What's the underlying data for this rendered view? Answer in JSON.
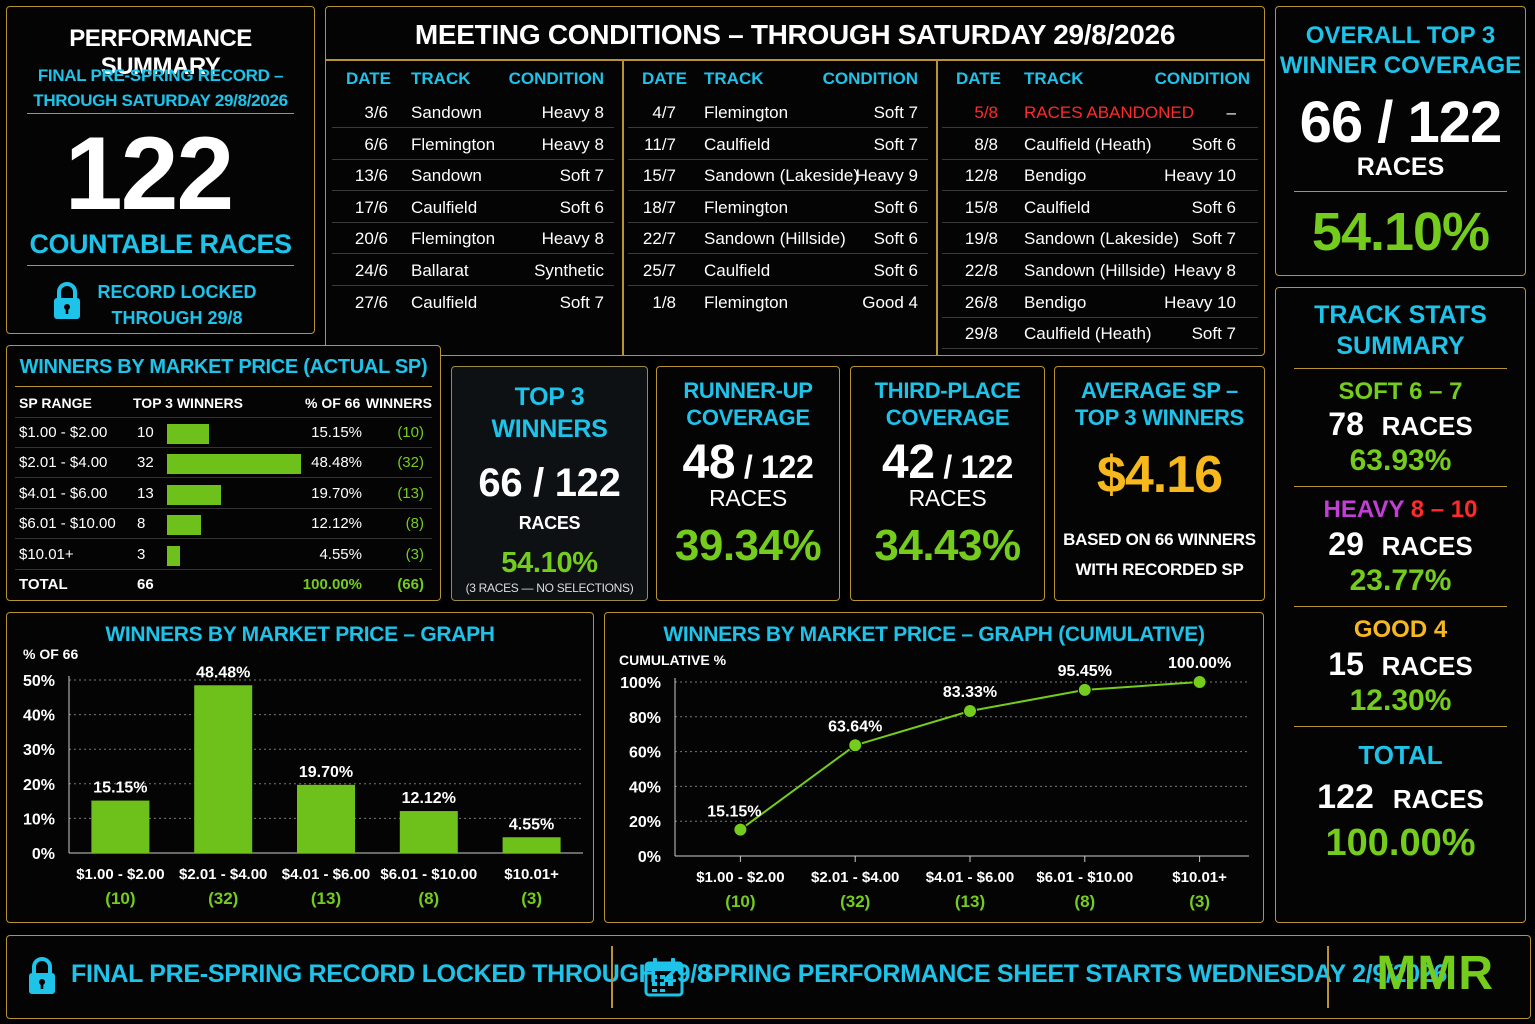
{
  "performance_summary": {
    "title": "PERFORMANCE SUMMARY",
    "subtitle_line1": "FINAL PRE-SPRING RECORD –",
    "subtitle_line2": "THROUGH SATURDAY 29/8/2026",
    "big_number": "122",
    "big_label": "COUNTABLE RACES",
    "lock_line1": "RECORD LOCKED",
    "lock_line2": "THROUGH 29/8"
  },
  "meeting_conditions": {
    "title": "MEETING CONDITIONS – THROUGH SATURDAY 29/8/2026",
    "headers": {
      "date": "DATE",
      "track": "TRACK",
      "condition": "CONDITION"
    },
    "col1": [
      {
        "date": "3/6",
        "track": "Sandown",
        "condition": "Heavy 8"
      },
      {
        "date": "6/6",
        "track": "Flemington",
        "condition": "Heavy 8"
      },
      {
        "date": "13/6",
        "track": "Sandown",
        "condition": "Soft 7"
      },
      {
        "date": "17/6",
        "track": "Caulfield",
        "condition": "Soft 6"
      },
      {
        "date": "20/6",
        "track": "Flemington",
        "condition": "Heavy 8"
      },
      {
        "date": "24/6",
        "track": "Ballarat",
        "condition": "Synthetic"
      },
      {
        "date": "27/6",
        "track": "Caulfield",
        "condition": "Soft 7"
      }
    ],
    "col2": [
      {
        "date": "4/7",
        "track": "Flemington",
        "condition": "Soft 7"
      },
      {
        "date": "11/7",
        "track": "Caulfield",
        "condition": "Soft 7"
      },
      {
        "date": "15/7",
        "track": "Sandown (Lakeside)",
        "condition": "Heavy 9"
      },
      {
        "date": "18/7",
        "track": "Flemington",
        "condition": "Soft 6"
      },
      {
        "date": "22/7",
        "track": "Sandown (Hillside)",
        "condition": "Soft 6"
      },
      {
        "date": "25/7",
        "track": "Caulfield",
        "condition": "Soft 6"
      },
      {
        "date": "1/8",
        "track": "Flemington",
        "condition": "Good 4"
      }
    ],
    "col3": [
      {
        "date": "5/8",
        "track": "RACES ABANDONED",
        "condition": "–",
        "abandoned": true
      },
      {
        "date": "8/8",
        "track": "Caulfield (Heath)",
        "condition": "Soft 6"
      },
      {
        "date": "12/8",
        "track": "Bendigo",
        "condition": "Heavy 10"
      },
      {
        "date": "15/8",
        "track": "Caulfield",
        "condition": "Soft 6"
      },
      {
        "date": "19/8",
        "track": "Sandown (Lakeside)",
        "condition": "Soft 7"
      },
      {
        "date": "22/8",
        "track": "Sandown (Hillside)",
        "condition": "Heavy 8"
      },
      {
        "date": "26/8",
        "track": "Bendigo",
        "condition": "Heavy 10"
      },
      {
        "date": "29/8",
        "track": "Caulfield (Heath)",
        "condition": "Soft 7"
      }
    ]
  },
  "overall": {
    "title_line1": "OVERALL TOP 3",
    "title_line2": "WINNER COVERAGE",
    "value": "66 / 122",
    "unit": "RACES",
    "pct": "54.10%"
  },
  "winners_table": {
    "title": "WINNERS BY MARKET PRICE (ACTUAL SP)",
    "headers": {
      "range": "SP RANGE",
      "winners": "TOP 3 WINNERS",
      "pct": "% OF 66",
      "count": "WINNERS"
    },
    "rows": [
      {
        "range": "$1.00 - $2.00",
        "winners": "10",
        "share": 15.15,
        "pct": "15.15%",
        "count": "(10)"
      },
      {
        "range": "$2.01 - $4.00",
        "winners": "32",
        "share": 48.48,
        "pct": "48.48%",
        "count": "(32)"
      },
      {
        "range": "$4.01 - $6.00",
        "winners": "13",
        "share": 19.7,
        "pct": "19.70%",
        "count": "(13)"
      },
      {
        "range": "$6.01 - $10.00",
        "winners": "8",
        "share": 12.12,
        "pct": "12.12%",
        "count": "(8)"
      },
      {
        "range": "$10.01+",
        "winners": "3",
        "share": 4.55,
        "pct": "4.55%",
        "count": "(3)"
      }
    ],
    "total": {
      "range": "TOTAL",
      "winners": "66",
      "pct": "100.00%",
      "count": "(66)"
    }
  },
  "kpis": {
    "top3": {
      "title_line1": "TOP 3",
      "title_line2": "WINNERS",
      "value": "66 / 122",
      "unit": "RACES",
      "pct": "54.10%",
      "note": "(3 RACES — NO SELECTIONS)"
    },
    "runner_up": {
      "title_line1": "RUNNER-UP",
      "title_line2": "COVERAGE",
      "value_main": "48",
      "value_rest": " / 122",
      "unit": "RACES",
      "pct": "39.34%"
    },
    "third": {
      "title_line1": "THIRD-PLACE",
      "title_line2": "COVERAGE",
      "value_main": "42",
      "value_rest": " / 122",
      "unit": "RACES",
      "pct": "34.43%"
    },
    "avg_sp": {
      "title_line1": "AVERAGE SP –",
      "title_line2": "TOP 3 WINNERS",
      "value": "$4.16",
      "note_line1": "BASED ON 66 WINNERS",
      "note_line2": "WITH RECORDED SP"
    }
  },
  "track_stats": {
    "title_line1": "TRACK STATS",
    "title_line2": "SUMMARY",
    "soft": {
      "label": "SOFT 6 – 7",
      "races": "78",
      "unit": "RACES",
      "pct": "63.93%"
    },
    "heavy": {
      "label_a": "HEAVY",
      "label_b": " 8 – 10",
      "races": "29",
      "unit": "RACES",
      "pct": "23.77%"
    },
    "good": {
      "label": "GOOD 4",
      "races": "15",
      "unit": "RACES",
      "pct": "12.30%"
    },
    "total": {
      "label": "TOTAL",
      "races": "122",
      "unit": "RACES",
      "pct": "100.00%"
    }
  },
  "chart_data": [
    {
      "type": "bar",
      "title": "WINNERS BY MARKET PRICE – GRAPH",
      "ylabel": "% OF 66",
      "categories": [
        "$1.00 - $2.00",
        "$2.01 - $4.00",
        "$4.01 - $6.00",
        "$6.01 - $10.00",
        "$10.01+"
      ],
      "counts": [
        "(10)",
        "(32)",
        "(13)",
        "(8)",
        "(3)"
      ],
      "values": [
        15.15,
        48.48,
        19.7,
        12.12,
        4.55
      ],
      "value_labels": [
        "15.15%",
        "48.48%",
        "19.70%",
        "12.12%",
        "4.55%"
      ],
      "ylim": [
        0,
        50
      ],
      "yticks": [
        "0%",
        "10%",
        "20%",
        "30%",
        "40%",
        "50%"
      ],
      "grid": true,
      "color": "#6ec11a"
    },
    {
      "type": "line",
      "title": "WINNERS BY MARKET PRICE – GRAPH (CUMULATIVE)",
      "ylabel": "CUMULATIVE %",
      "categories": [
        "$1.00 - $2.00",
        "$2.01 - $4.00",
        "$4.01 - $6.00",
        "$6.01 - $10.00",
        "$10.01+"
      ],
      "counts": [
        "(10)",
        "(32)",
        "(13)",
        "(8)",
        "(3)"
      ],
      "values": [
        15.15,
        63.64,
        83.33,
        95.45,
        100.0
      ],
      "value_labels": [
        "15.15%",
        "63.64%",
        "83.33%",
        "95.45%",
        "100.00%"
      ],
      "ylim": [
        0,
        100
      ],
      "yticks": [
        "0%",
        "20%",
        "40%",
        "60%",
        "80%",
        "100%"
      ],
      "grid": true,
      "color": "#74cc1c"
    }
  ],
  "footer": {
    "left": "FINAL PRE-SPRING RECORD LOCKED THROUGH 29/8",
    "middle": "SPRING PERFORMANCE SHEET STARTS WEDNESDAY 2/9/2026",
    "brand": "MMR"
  },
  "colors": {
    "border": "#b8932f",
    "cyan": "#1ec3ea",
    "green": "#74cc1c",
    "gold": "#f6b81c",
    "red": "#ff2a2a",
    "magenta": "#c23ed6"
  }
}
